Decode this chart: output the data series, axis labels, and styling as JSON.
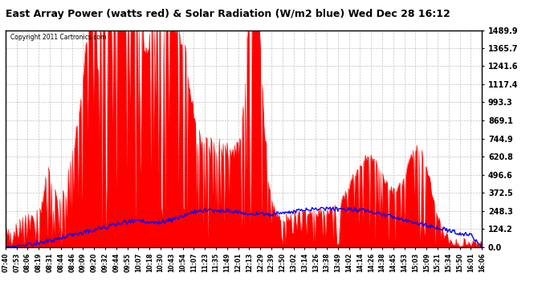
{
  "title": "East Array Power (watts red) & Solar Radiation (W/m2 blue) Wed Dec 28 16:12",
  "copyright_text": "Copyright 2011 Cartronics.com",
  "yticks": [
    0.0,
    124.2,
    248.3,
    372.5,
    496.6,
    620.8,
    744.9,
    869.1,
    993.3,
    1117.4,
    1241.6,
    1365.7,
    1489.9
  ],
  "xtick_labels": [
    "07:40",
    "07:53",
    "08:06",
    "08:19",
    "08:31",
    "08:44",
    "08:46",
    "09:09",
    "09:20",
    "09:32",
    "09:44",
    "09:55",
    "10:07",
    "10:18",
    "10:30",
    "10:43",
    "10:54",
    "11:07",
    "11:23",
    "11:35",
    "11:49",
    "12:01",
    "12:13",
    "12:29",
    "12:39",
    "12:50",
    "13:02",
    "13:14",
    "13:26",
    "13:38",
    "13:49",
    "14:02",
    "14:14",
    "14:26",
    "14:38",
    "14:45",
    "14:53",
    "15:03",
    "15:09",
    "15:21",
    "15:34",
    "15:50",
    "16:01",
    "16:06"
  ],
  "bg_color": "#ffffff",
  "plot_bg_color": "#ffffff",
  "grid_color": "#bbbbbb",
  "red_color": "#ff0000",
  "blue_color": "#0000ff",
  "fill_color": "#ff0000",
  "title_fontsize": 9,
  "ymax": 1489.9,
  "ymin": 0.0
}
